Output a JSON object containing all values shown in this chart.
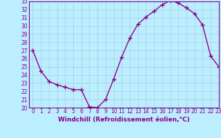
{
  "x": [
    0,
    1,
    2,
    3,
    4,
    5,
    6,
    7,
    8,
    9,
    10,
    11,
    12,
    13,
    14,
    15,
    16,
    17,
    18,
    19,
    20,
    21,
    22,
    23
  ],
  "y": [
    27,
    24.5,
    23.2,
    22.8,
    22.5,
    22.2,
    22.2,
    20.1,
    20.0,
    21.0,
    23.5,
    26.2,
    28.5,
    30.2,
    31.1,
    31.8,
    32.6,
    33.1,
    32.8,
    32.2,
    31.5,
    30.1,
    26.3,
    25.0
  ],
  "line_color": "#880088",
  "marker": "+",
  "marker_size": 4,
  "marker_linewidth": 1.0,
  "bg_color": "#bbeeff",
  "grid_color": "#aaccdd",
  "xlabel": "Windchill (Refroidissement éolien,°C)",
  "ylim": [
    20,
    33
  ],
  "xlim": [
    -0.5,
    23
  ],
  "yticks": [
    20,
    21,
    22,
    23,
    24,
    25,
    26,
    27,
    28,
    29,
    30,
    31,
    32,
    33
  ],
  "xticks": [
    0,
    1,
    2,
    3,
    4,
    5,
    6,
    7,
    8,
    9,
    10,
    11,
    12,
    13,
    14,
    15,
    16,
    17,
    18,
    19,
    20,
    21,
    22,
    23
  ],
  "tick_fontsize": 5.5,
  "xlabel_fontsize": 6.5
}
